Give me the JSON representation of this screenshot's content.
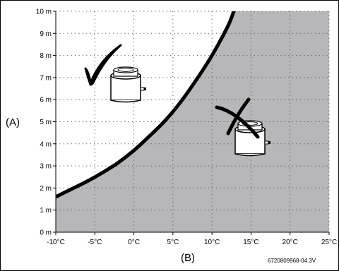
{
  "chart_data": {
    "type": "area",
    "x_ticks": [
      "-10°C",
      "-5°C",
      "0°C",
      "5°C",
      "10°C",
      "15°C",
      "20°C",
      "25°C"
    ],
    "y_ticks": [
      "0 m",
      "1 m",
      "2 m",
      "3 m",
      "4 m",
      "5 m",
      "6 m",
      "7 m",
      "8 m",
      "9 m",
      "10 m"
    ],
    "xlim": [
      -10,
      25
    ],
    "ylim": [
      0,
      10
    ],
    "xlabel": "(B)",
    "ylabel": "(A)",
    "series": [
      {
        "x": [
          -10,
          -8,
          -6,
          -4,
          -2,
          0,
          2,
          4,
          6,
          8,
          10,
          12,
          12.8
        ],
        "y": [
          1.6,
          1.95,
          2.3,
          2.7,
          3.15,
          3.7,
          4.35,
          5.05,
          5.9,
          6.9,
          8.0,
          9.3,
          10.0
        ]
      }
    ],
    "regions": [
      {
        "side": "above-left",
        "fill": "#ffffff",
        "marker": "check-mark"
      },
      {
        "side": "below-right",
        "fill": "#b7b7b9",
        "marker": "cross-mark"
      }
    ],
    "grid": true,
    "grid_style": "dotted",
    "figure_code": "6720809968-04.3V"
  }
}
